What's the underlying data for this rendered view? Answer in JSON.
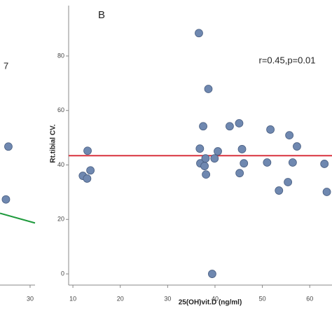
{
  "chart_data": [
    {
      "type": "scatter",
      "annotation": "7",
      "x": [
        25.6,
        25.1
      ],
      "y": [
        47.0,
        27.5
      ],
      "color": "#6f88b0",
      "fit_line": {
        "x": [
          23.9,
          31.0
        ],
        "y": [
          22.4,
          18.8
        ],
        "color": "#1e9a3c"
      },
      "xlim": [
        23.9,
        31.0
      ],
      "ylim": [
        -4.1,
        98.5
      ],
      "xticks": [
        30
      ]
    },
    {
      "type": "scatter",
      "title": "B",
      "annotation": "r=0.45,p=0.01",
      "x_label": "25(OH)vit.D (ng/ml)",
      "y_label": "Rt.tibial CV.",
      "x": [
        36.6,
        37.5,
        38.6,
        43.1,
        45.1,
        13.1,
        12.1,
        13.0,
        13.7,
        36.8,
        36.9,
        38.0,
        38.1,
        37.8,
        39.9,
        40.6,
        39.4,
        45.7,
        46.1,
        45.2,
        51.7,
        51.0,
        55.7,
        56.4,
        57.3,
        53.5,
        55.4,
        63.1,
        63.6
      ],
      "y": [
        88.4,
        54.2,
        67.9,
        54.2,
        55.3,
        45.2,
        36.0,
        35.0,
        38.0,
        46.0,
        40.6,
        42.4,
        36.5,
        39.6,
        42.4,
        45.0,
        0,
        45.8,
        40.6,
        37.0,
        53.0,
        40.9,
        50.9,
        40.9,
        46.8,
        30.6,
        33.7,
        40.4,
        30.1
      ],
      "color": "#6f88b0",
      "fit_line": {
        "x": [
          9.1,
          64.7
        ],
        "y": [
          43.4,
          43.4
        ],
        "color": "#d9333f"
      },
      "xlim": [
        9.1,
        64.7
      ],
      "ylim": [
        -4.1,
        98.5
      ],
      "xticks": [
        10,
        20,
        30,
        40,
        50,
        60
      ],
      "yticks": [
        0,
        20,
        40,
        60,
        80
      ]
    }
  ]
}
